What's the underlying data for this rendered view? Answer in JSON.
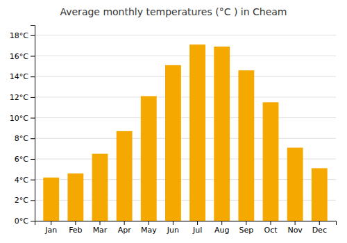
{
  "chart_data": {
    "type": "bar",
    "title": "Average monthly temperatures (°C ) in Cheam",
    "categories": [
      "Jan",
      "Feb",
      "Mar",
      "Apr",
      "May",
      "Jun",
      "Jul",
      "Aug",
      "Sep",
      "Oct",
      "Nov",
      "Dec"
    ],
    "values": [
      4.2,
      4.6,
      6.5,
      8.7,
      12.1,
      15.1,
      17.1,
      16.9,
      14.6,
      11.5,
      7.1,
      5.1
    ],
    "color": "#F5A800",
    "ylim": [
      0,
      19
    ],
    "yticks": [
      {
        "value": 0,
        "label": "0°C"
      },
      {
        "value": 2,
        "label": "2°C"
      },
      {
        "value": 4,
        "label": "4°C"
      },
      {
        "value": 6,
        "label": "6°C"
      },
      {
        "value": 8,
        "label": "8°C"
      },
      {
        "value": 10,
        "label": "10°C"
      },
      {
        "value": 12,
        "label": "12°C"
      },
      {
        "value": 14,
        "label": "14°C"
      },
      {
        "value": 16,
        "label": "16°C"
      },
      {
        "value": 18,
        "label": "18°C"
      }
    ],
    "grid": true
  }
}
